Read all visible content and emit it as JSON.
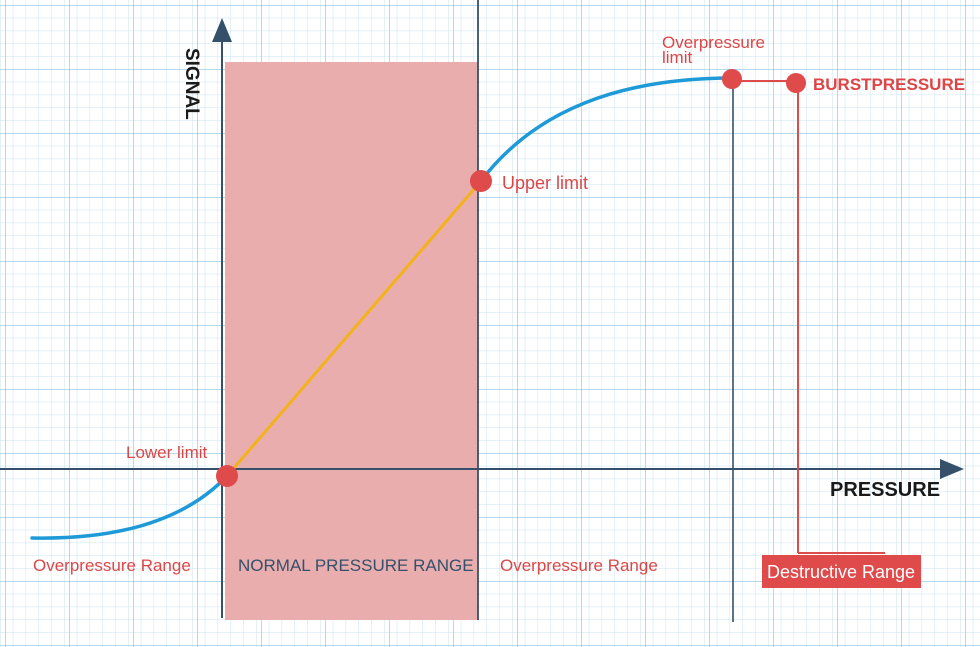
{
  "axes": {
    "y_label": "SIGNAL",
    "x_label": "PRESSURE"
  },
  "points": {
    "lower_limit": "Lower limit",
    "upper_limit": "Upper limit",
    "overpressure_limit": [
      "Overpressure",
      "limit"
    ],
    "burst_pressure": "BURSTPRESSURE"
  },
  "ranges": {
    "overpressure_left": "Overpressure Range",
    "normal": "NORMAL PRESSURE RANGE",
    "overpressure_right": "Overpressure Range",
    "destructive": "Destructive Range"
  },
  "colors": {
    "grid_minor": "#c9e3f3",
    "grid_major": "#8ec3e6",
    "axis": "#35506b",
    "normal_range_fill": "#e9adad",
    "curve": "#1e9ad8",
    "linear_segment": "#f2b21b",
    "marker": "#df4a4a",
    "label_red": "#dc4646",
    "label_navy": "#35506b"
  }
}
